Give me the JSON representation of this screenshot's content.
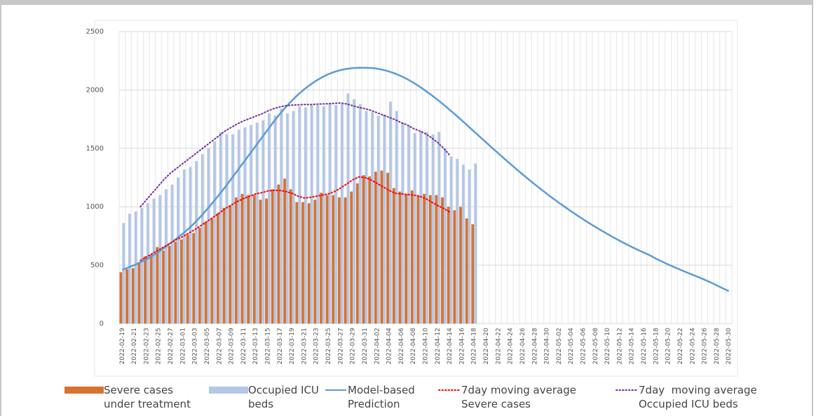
{
  "chart_data": {
    "type": "bar",
    "categories": [
      "2022-02-19",
      null,
      "2022-02-21",
      null,
      "2022-02-23",
      null,
      "2022-02-25",
      null,
      "2022-02-27",
      null,
      "2022-03-01",
      null,
      "2022-03-03",
      null,
      "2022-03-05",
      null,
      "2022-03-07",
      null,
      "2022-03-09",
      null,
      "2022-03-11",
      null,
      "2022-03-13",
      null,
      "2022-03-15",
      null,
      "2022-03-17",
      null,
      "2022-03-19",
      null,
      "2022-03-21",
      null,
      "2022-03-23",
      null,
      "2022-03-25",
      null,
      "2022-03-27",
      null,
      "2022-03-29",
      null,
      "2022-03-31",
      null,
      "2022-04-02",
      null,
      "2022-04-04",
      null,
      "2022-04-06",
      null,
      "2022-04-08",
      null,
      "2022-04-10",
      null,
      "2022-04-12",
      null,
      "2022-04-14",
      null,
      "2022-04-16",
      null,
      "2022-04-18",
      null,
      "2022-04-20",
      null,
      "2022-04-22",
      null,
      "2022-04-24",
      null,
      "2022-04-26",
      null,
      "2022-04-28",
      null,
      "2022-04-30",
      null,
      "2022-05-02",
      null,
      "2022-05-04",
      null,
      "2022-05-06",
      null,
      "2022-05-08",
      null,
      "2022-05-10",
      null,
      "2022-05-12",
      null,
      "2022-05-14",
      null,
      "2022-05-16",
      null,
      "2022-05-18",
      null,
      "2022-05-20",
      null,
      "2022-05-22",
      null,
      "2022-05-24",
      null,
      "2022-05-26",
      null,
      "2022-05-28",
      null,
      "2022-05-30"
    ],
    "series": [
      {
        "name": "Severe cases under treatment",
        "type": "bar",
        "color": "#d9722e",
        "values": [
          440,
          465,
          475,
          520,
          575,
          590,
          655,
          625,
          665,
          700,
          720,
          760,
          775,
          820,
          870,
          900,
          945,
          990,
          1010,
          1080,
          1110,
          1100,
          1100,
          1060,
          1070,
          1150,
          1190,
          1240,
          1150,
          1040,
          1040,
          1030,
          1060,
          1120,
          1100,
          1100,
          1080,
          1080,
          1130,
          1200,
          1270,
          1260,
          1300,
          1310,
          1290,
          1160,
          1130,
          1110,
          1140,
          1100,
          1110,
          1100,
          1100,
          1080,
          1000,
          970,
          1000,
          900,
          850,
          null,
          null,
          null,
          null,
          null,
          null,
          null,
          null,
          null,
          null,
          null,
          null,
          null,
          null,
          null,
          null,
          null,
          null,
          null,
          null,
          null,
          null,
          null,
          null,
          null,
          null,
          null,
          null,
          null,
          null,
          null,
          null,
          null,
          null,
          null,
          null,
          null,
          null,
          null,
          null,
          null,
          null
        ]
      },
      {
        "name": "Occupied ICU beds",
        "type": "bar",
        "color": "#b4c7e7",
        "values": [
          860,
          940,
          960,
          990,
          1030,
          1070,
          1100,
          1150,
          1190,
          1250,
          1320,
          1340,
          1390,
          1450,
          1500,
          1560,
          1640,
          1620,
          1620,
          1660,
          1680,
          1700,
          1720,
          1740,
          1800,
          1780,
          1840,
          1800,
          1820,
          1860,
          1850,
          1870,
          1870,
          1860,
          1880,
          1870,
          1880,
          1970,
          1920,
          1880,
          1820,
          1810,
          1780,
          1790,
          1900,
          1820,
          1720,
          1700,
          1630,
          1650,
          1640,
          1620,
          1640,
          1500,
          1430,
          1410,
          1360,
          1320,
          1370,
          null,
          null,
          null,
          null,
          null,
          null,
          null,
          null,
          null,
          null,
          null,
          null,
          null,
          null,
          null,
          null,
          null,
          null,
          null,
          null,
          null,
          null,
          null,
          null,
          null,
          null,
          null,
          null,
          null,
          null,
          null,
          null,
          null,
          null,
          null,
          null,
          null,
          null,
          null,
          null,
          null,
          null
        ]
      },
      {
        "name": "Model-based Prediction",
        "type": "line",
        "style": "solid",
        "color": "#5b9bd5",
        "values": [
          460,
          480,
          500,
          525,
          550,
          580,
          615,
          650,
          690,
          730,
          770,
          815,
          865,
          920,
          980,
          1040,
          1105,
          1170,
          1240,
          1310,
          1380,
          1450,
          1520,
          1590,
          1660,
          1730,
          1795,
          1855,
          1910,
          1960,
          2005,
          2045,
          2080,
          2110,
          2135,
          2155,
          2170,
          2180,
          2187,
          2190,
          2190,
          2188,
          2182,
          2172,
          2158,
          2140,
          2118,
          2092,
          2062,
          2029,
          1993,
          1955,
          1915,
          1873,
          1829,
          1784,
          1738,
          1691,
          1644,
          1597,
          1550,
          1503,
          1457,
          1411,
          1366,
          1321,
          1277,
          1234,
          1192,
          1151,
          1111,
          1072,
          1034,
          997,
          961,
          926,
          892,
          859,
          827,
          796,
          766,
          737,
          709,
          682,
          656,
          631,
          607,
          584,
          555,
          530,
          506,
          483,
          461,
          439,
          418,
          398,
          375,
          352,
          327,
          302,
          277
        ]
      },
      {
        "name": "7day moving average Severe cases",
        "type": "line",
        "style": "dotted",
        "color": "#ff0000",
        "values": [
          null,
          null,
          null,
          540,
          570,
          600,
          630,
          660,
          690,
          720,
          745,
          775,
          805,
          840,
          875,
          910,
          945,
          985,
          1015,
          1045,
          1070,
          1090,
          1110,
          1120,
          1135,
          1140,
          1140,
          1130,
          1115,
          1090,
          1075,
          1080,
          1090,
          1100,
          1110,
          1130,
          1160,
          1195,
          1230,
          1255,
          1250,
          1230,
          1200,
          1170,
          1140,
          1115,
          1110,
          1105,
          1100,
          1090,
          1070,
          1040,
          1010,
          985,
          955,
          null,
          null,
          null,
          null,
          null,
          null,
          null,
          null,
          null,
          null,
          null,
          null,
          null,
          null,
          null,
          null,
          null,
          null,
          null,
          null,
          null,
          null,
          null,
          null,
          null,
          null,
          null,
          null,
          null,
          null,
          null,
          null,
          null,
          null,
          null,
          null,
          null,
          null,
          null,
          null,
          null,
          null,
          null,
          null,
          null,
          null
        ]
      },
      {
        "name": "7day  moving average Occupied ICU beds",
        "type": "line",
        "style": "dotted",
        "color": "#7030a0",
        "values": [
          null,
          null,
          null,
          1000,
          1060,
          1120,
          1180,
          1240,
          1290,
          1330,
          1370,
          1410,
          1450,
          1490,
          1530,
          1570,
          1610,
          1650,
          1680,
          1710,
          1735,
          1755,
          1775,
          1795,
          1820,
          1840,
          1855,
          1865,
          1870,
          1872,
          1875,
          1875,
          1878,
          1880,
          1882,
          1885,
          1888,
          1880,
          1865,
          1850,
          1840,
          1825,
          1805,
          1785,
          1765,
          1745,
          1720,
          1700,
          1670,
          1650,
          1625,
          1590,
          1550,
          1500,
          1440,
          null,
          null,
          null,
          null,
          null,
          null,
          null,
          null,
          null,
          null,
          null,
          null,
          null,
          null,
          null,
          null,
          null,
          null,
          null,
          null,
          null,
          null,
          null,
          null,
          null,
          null,
          null,
          null,
          null,
          null,
          null,
          null,
          null,
          null,
          null,
          null,
          null,
          null,
          null,
          null,
          null,
          null,
          null,
          null,
          null,
          null
        ]
      }
    ],
    "ylim": [
      0,
      2500
    ],
    "yticks": [
      0,
      500,
      1000,
      1500,
      2000,
      2500
    ],
    "grid": true
  }
}
